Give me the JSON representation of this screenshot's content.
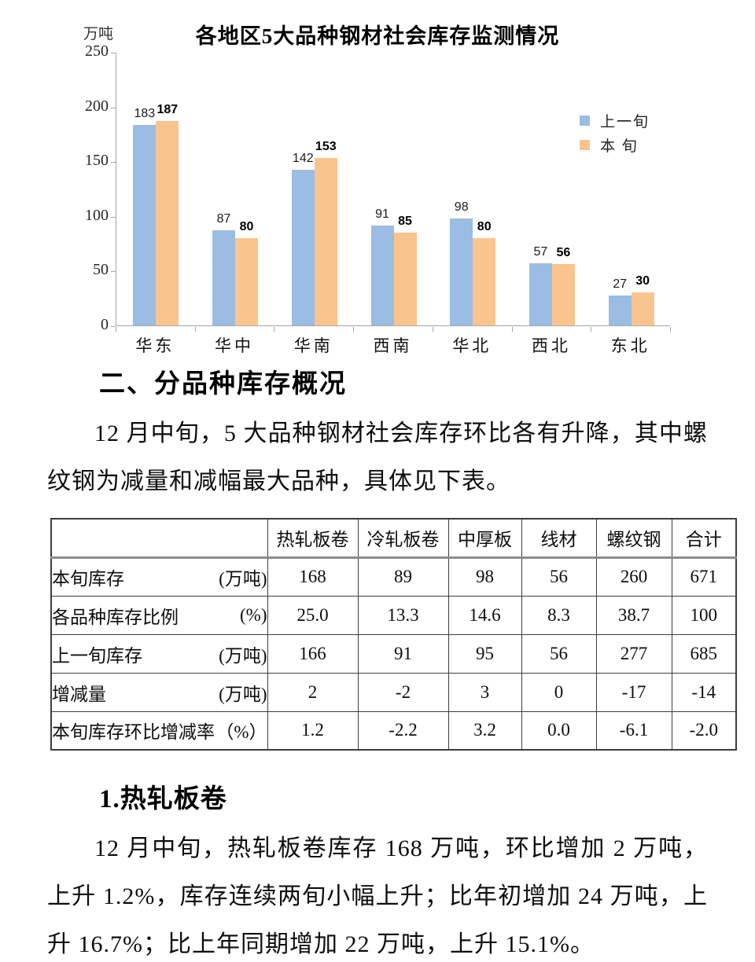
{
  "chart": {
    "unit_label": "万吨",
    "legend": [
      {
        "label": "上一旬",
        "color": "#9BBCE3"
      },
      {
        "label": "本  旬",
        "color": "#FAC48E"
      }
    ]
  },
  "chart_data": {
    "type": "bar",
    "title": "各地区5大品种钢材社会库存监测情况",
    "categories": [
      "华东",
      "华中",
      "华南",
      "西南",
      "华北",
      "西北",
      "东北"
    ],
    "series": [
      {
        "name": "上一旬",
        "color": "#9BBCE3",
        "values": [
          183,
          87,
          142,
          91,
          98,
          57,
          27
        ]
      },
      {
        "name": "本旬",
        "color": "#FAC48E",
        "values": [
          187,
          80,
          153,
          85,
          80,
          56,
          30
        ]
      }
    ],
    "xlabel": "",
    "ylabel": "万吨",
    "ylim": [
      0,
      250
    ],
    "yticks": [
      0,
      50,
      100,
      150,
      200,
      250
    ],
    "grid": false,
    "legend_position": "right",
    "data_labels": true
  },
  "section2": {
    "heading": "二、分品种库存概况",
    "paragraph": "12 月中旬，5 大品种钢材社会库存环比各有升降，其中螺纹钢为减量和减幅最大品种，具体见下表。"
  },
  "table": {
    "columns": [
      "",
      "热轧板卷",
      "冷轧板卷",
      "中厚板",
      "线材",
      "螺纹钢",
      "合计"
    ],
    "rows": [
      {
        "label": "本旬库存",
        "unit": "(万吨)",
        "values": [
          "168",
          "89",
          "98",
          "56",
          "260",
          "671"
        ]
      },
      {
        "label": "各品种库存比例",
        "unit": "(%)",
        "values": [
          "25.0",
          "13.3",
          "14.6",
          "8.3",
          "38.7",
          "100"
        ]
      },
      {
        "label": "上一旬库存",
        "unit": "(万吨)",
        "values": [
          "166",
          "91",
          "95",
          "56",
          "277",
          "685"
        ]
      },
      {
        "label": "增减量",
        "unit": "(万吨)",
        "values": [
          "2",
          "-2",
          "3",
          "0",
          "-17",
          "-14"
        ]
      },
      {
        "label": "本旬库存环比增减率",
        "unit": "（%）",
        "values": [
          "1.2",
          "-2.2",
          "3.2",
          "0.0",
          "-6.1",
          "-2.0"
        ]
      }
    ]
  },
  "section2_1": {
    "heading": "1.热轧板卷",
    "paragraph": "12 月中旬，热轧板卷库存 168 万吨，环比增加 2 万吨，上升 1.2%，库存连续两旬小幅上升；比年初增加 24 万吨，上升 16.7%；比上年同期增加 22 万吨，上升 15.1%。"
  }
}
